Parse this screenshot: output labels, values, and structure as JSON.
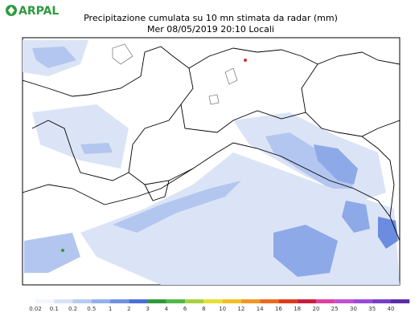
{
  "header": {
    "logo": "ARPAL",
    "title": "Precipitazione cumulata su 10 mn stimata da radar (mm)",
    "subtitle": "Mer 08/05/2019 20:10 Locali"
  },
  "legend": {
    "items": [
      {
        "label": "0.02",
        "color": "#f4f6fc"
      },
      {
        "label": "0.1",
        "color": "#d8e2f6"
      },
      {
        "label": "0.2",
        "color": "#b8caf0"
      },
      {
        "label": "0.5",
        "color": "#94aeea"
      },
      {
        "label": "1",
        "color": "#6f90e2"
      },
      {
        "label": "2",
        "color": "#4a6fd6"
      },
      {
        "label": "3",
        "color": "#2f9a3c"
      },
      {
        "label": "4",
        "color": "#52b848"
      },
      {
        "label": "6",
        "color": "#a8d23c"
      },
      {
        "label": "8",
        "color": "#e8e030"
      },
      {
        "label": "10",
        "color": "#f2c020"
      },
      {
        "label": "12",
        "color": "#f09820"
      },
      {
        "label": "14",
        "color": "#ec6a1c"
      },
      {
        "label": "16",
        "color": "#e03a1a"
      },
      {
        "label": "18",
        "color": "#c81e3c"
      },
      {
        "label": "20",
        "color": "#e040a0"
      },
      {
        "label": "25",
        "color": "#c050d0"
      },
      {
        "label": "30",
        "color": "#9a4ad8"
      },
      {
        "label": "35",
        "color": "#7a3cc8"
      },
      {
        "label": "40",
        "color": "#5a2ca8"
      }
    ]
  }
}
